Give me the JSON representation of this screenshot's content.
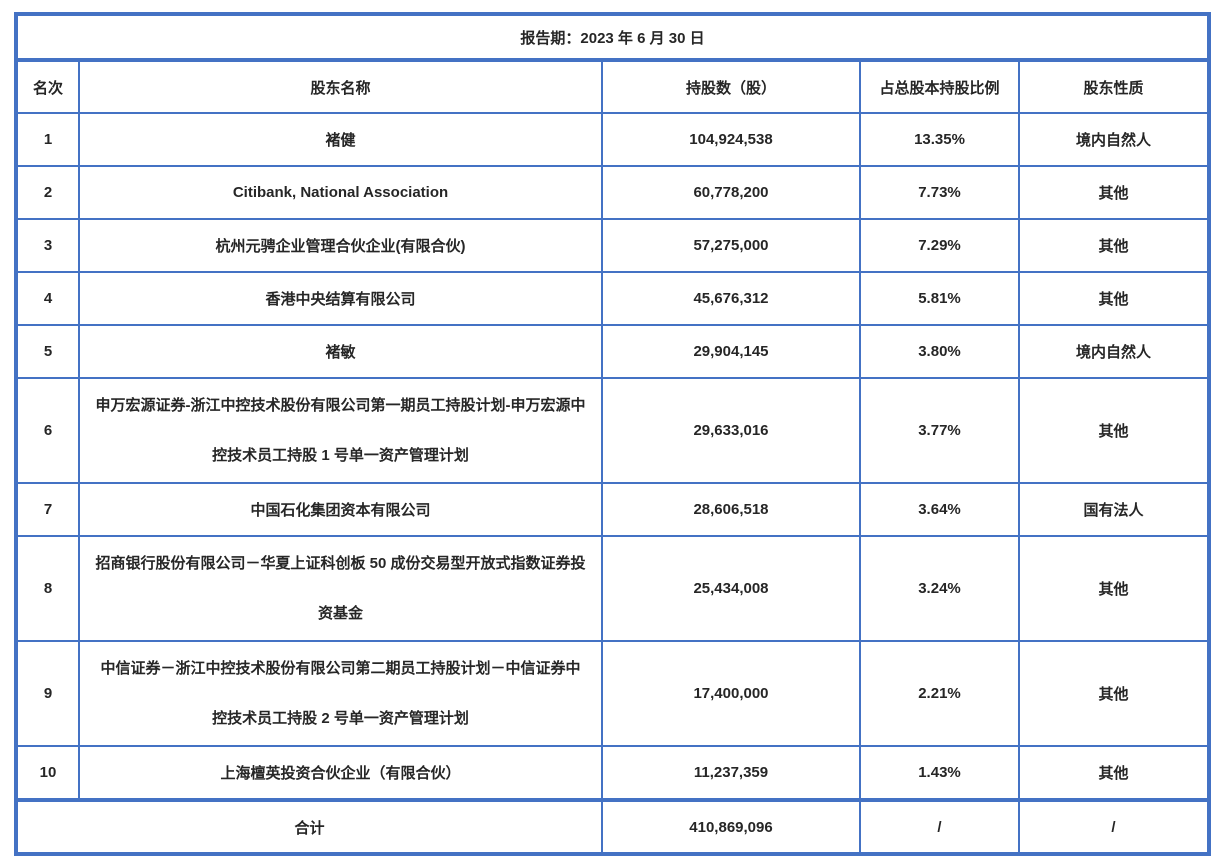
{
  "report_period": "报告期：2023 年 6 月 30 日",
  "columns": [
    "名次",
    "股东名称",
    "持股数（股）",
    "占总股本持股比例",
    "股东性质"
  ],
  "rows": [
    {
      "rank": "1",
      "name": "褚健",
      "shares": "104,924,538",
      "pct": "13.35%",
      "nature": "境内自然人"
    },
    {
      "rank": "2",
      "name": "Citibank, National Association",
      "shares": "60,778,200",
      "pct": "7.73%",
      "nature": "其他"
    },
    {
      "rank": "3",
      "name": "杭州元骋企业管理合伙企业(有限合伙)",
      "shares": "57,275,000",
      "pct": "7.29%",
      "nature": "其他"
    },
    {
      "rank": "4",
      "name": "香港中央结算有限公司",
      "shares": "45,676,312",
      "pct": "5.81%",
      "nature": "其他"
    },
    {
      "rank": "5",
      "name": "褚敏",
      "shares": "29,904,145",
      "pct": "3.80%",
      "nature": "境内自然人"
    },
    {
      "rank": "6",
      "name": "申万宏源证券-浙江中控技术股份有限公司第一期员工持股计划-申万宏源中控技术员工持股 1 号单一资产管理计划",
      "shares": "29,633,016",
      "pct": "3.77%",
      "nature": "其他"
    },
    {
      "rank": "7",
      "name": "中国石化集团资本有限公司",
      "shares": "28,606,518",
      "pct": "3.64%",
      "nature": "国有法人"
    },
    {
      "rank": "8",
      "name": "招商银行股份有限公司－华夏上证科创板 50 成份交易型开放式指数证券投资基金",
      "shares": "25,434,008",
      "pct": "3.24%",
      "nature": "其他"
    },
    {
      "rank": "9",
      "name": "中信证券－浙江中控技术股份有限公司第二期员工持股计划－中信证券中控技术员工持股 2 号单一资产管理计划",
      "shares": "17,400,000",
      "pct": "2.21%",
      "nature": "其他"
    },
    {
      "rank": "10",
      "name": "上海檀英投资合伙企业（有限合伙）",
      "shares": "11,237,359",
      "pct": "1.43%",
      "nature": "其他"
    }
  ],
  "total": {
    "label": "合计",
    "shares": "410,869,096",
    "pct": "/",
    "nature": "/"
  },
  "colors": {
    "border": "#4472C4",
    "text": "#262626",
    "background": "#FFFFFF"
  },
  "chart_data": {
    "type": "table",
    "title": "报告期：2023 年 6 月 30 日",
    "categories": [
      "褚健",
      "Citibank, National Association",
      "杭州元骋企业管理合伙企业(有限合伙)",
      "香港中央结算有限公司",
      "褚敏",
      "申万宏源证券-浙江中控技术股份有限公司第一期员工持股计划-申万宏源中控技术员工持股 1 号单一资产管理计划",
      "中国石化集团资本有限公司",
      "招商银行股份有限公司－华夏上证科创板 50 成份交易型开放式指数证券投资基金",
      "中信证券－浙江中控技术股份有限公司第二期员工持股计划－中信证券中控技术员工持股 2 号单一资产管理计划",
      "上海檀英投资合伙企业（有限合伙）"
    ],
    "series": [
      {
        "name": "持股数（股）",
        "values": [
          104924538,
          60778200,
          57275000,
          45676312,
          29904145,
          29633016,
          28606518,
          25434008,
          17400000,
          11237359
        ]
      },
      {
        "name": "占总股本持股比例(%)",
        "values": [
          13.35,
          7.73,
          7.29,
          5.81,
          3.8,
          3.77,
          3.64,
          3.24,
          2.21,
          1.43
        ]
      }
    ],
    "total_shares": 410869096
  }
}
